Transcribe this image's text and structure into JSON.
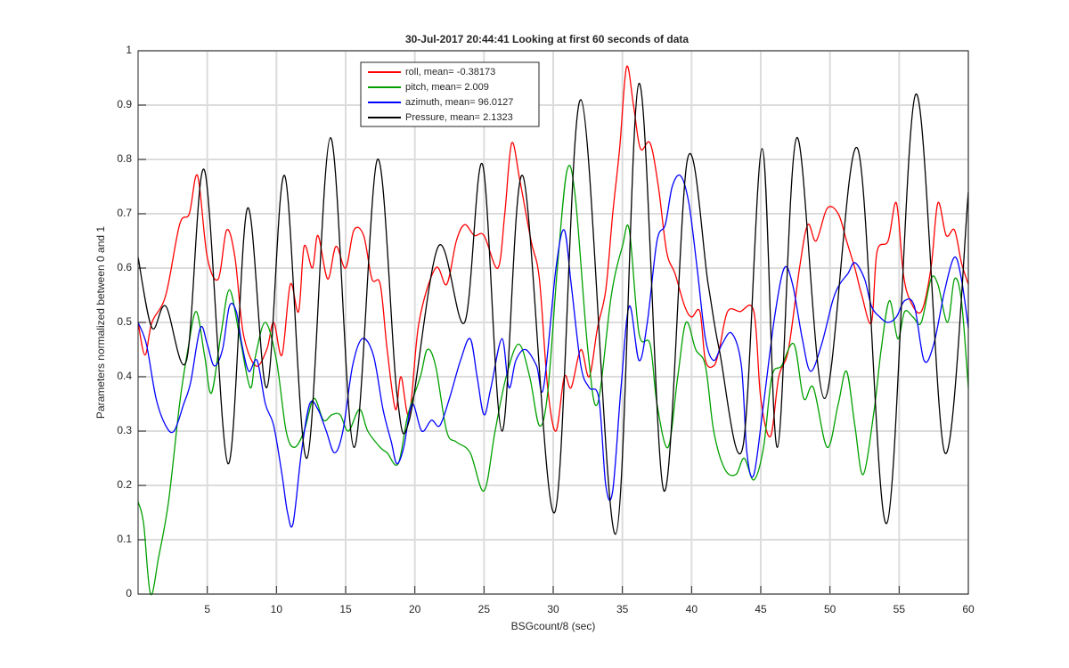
{
  "chart_data": {
    "type": "line",
    "title": "30-Jul-2017 20:44:41 Looking at first 60 seconds of data",
    "xlabel": "BSGcount/8 (sec)",
    "ylabel": "Parameters normalized between 0 and 1",
    "xlim": [
      0,
      60
    ],
    "xticks": [
      5,
      10,
      15,
      20,
      25,
      30,
      35,
      40,
      45,
      50,
      55,
      60
    ],
    "ylim": [
      0,
      1
    ],
    "yticks": [
      0,
      0.1,
      0.2,
      0.3,
      0.4,
      0.5,
      0.6,
      0.7,
      0.8,
      0.9,
      1
    ],
    "grid": true,
    "legend": "top",
    "series": [
      {
        "name": "roll, mean= -0.38173",
        "color": "#ff0000",
        "x": [
          0,
          0.5,
          1,
          2,
          3,
          3.7,
          4.3,
          5,
          5.8,
          6.4,
          7,
          7.6,
          8.5,
          9.3,
          9.8,
          10.4,
          11,
          11.6,
          12,
          12.6,
          13,
          13.7,
          14.3,
          15,
          15.6,
          16.3,
          16.9,
          17.5,
          18,
          18.6,
          19,
          19.6,
          20.3,
          21.5,
          22.3,
          23,
          23.6,
          24.3,
          25,
          26,
          26.5,
          27,
          27.6,
          28.4,
          29,
          29.6,
          30.2,
          30.8,
          31.3,
          32,
          32.6,
          33.2,
          33.8,
          34.3,
          34.8,
          35.3,
          35.8,
          36.3,
          37,
          37.6,
          38.2,
          38.8,
          39.5,
          40,
          40.6,
          41,
          41.6,
          42,
          42.6,
          43.5,
          44.5,
          45,
          45.7,
          46.3,
          47,
          47.8,
          48.4,
          49,
          49.8,
          50.6,
          51.2,
          51.8,
          52.3,
          53,
          53.4,
          54.2,
          54.8,
          55.3,
          55.8,
          56.6,
          57.3,
          57.8,
          58.4,
          59,
          59.5,
          60
        ],
        "values": [
          0.5,
          0.44,
          0.5,
          0.55,
          0.68,
          0.7,
          0.77,
          0.62,
          0.58,
          0.67,
          0.62,
          0.48,
          0.42,
          0.45,
          0.5,
          0.44,
          0.57,
          0.52,
          0.64,
          0.6,
          0.66,
          0.58,
          0.64,
          0.6,
          0.67,
          0.66,
          0.58,
          0.57,
          0.45,
          0.34,
          0.4,
          0.33,
          0.5,
          0.6,
          0.57,
          0.65,
          0.68,
          0.66,
          0.66,
          0.6,
          0.7,
          0.83,
          0.76,
          0.65,
          0.58,
          0.38,
          0.3,
          0.4,
          0.38,
          0.45,
          0.4,
          0.49,
          0.56,
          0.7,
          0.82,
          0.97,
          0.9,
          0.82,
          0.83,
          0.75,
          0.63,
          0.59,
          0.53,
          0.51,
          0.52,
          0.43,
          0.42,
          0.45,
          0.52,
          0.52,
          0.52,
          0.36,
          0.29,
          0.4,
          0.45,
          0.6,
          0.68,
          0.65,
          0.71,
          0.7,
          0.65,
          0.6,
          0.55,
          0.5,
          0.63,
          0.65,
          0.72,
          0.59,
          0.54,
          0.52,
          0.6,
          0.72,
          0.66,
          0.67,
          0.61,
          0.57
        ]
      },
      {
        "name": "pitch, mean= 2.009",
        "color": "#00a000",
        "x": [
          0,
          0.4,
          0.9,
          1.5,
          2.2,
          3,
          3.6,
          4.2,
          4.8,
          5.3,
          6,
          6.6,
          7.3,
          8.1,
          8.5,
          9.2,
          10,
          10.7,
          11.3,
          12,
          12.7,
          13.4,
          14,
          14.6,
          15.2,
          16,
          16.6,
          17.5,
          18,
          18.8,
          19.5,
          20.4,
          20.9,
          21.5,
          22.3,
          23,
          24,
          25,
          25.8,
          26.6,
          27.5,
          28.3,
          29,
          29.6,
          30.3,
          31,
          31.6,
          32.5,
          33.2,
          34.2,
          35,
          35.5,
          36.2,
          37,
          37.5,
          38.3,
          39,
          39.6,
          40.3,
          41,
          41.6,
          42.4,
          43.2,
          43.8,
          44.5,
          45.2,
          45.8,
          46.5,
          47.4,
          48.1,
          48.8,
          49.8,
          50.6,
          51.2,
          51.8,
          52.4,
          53.2,
          53.7,
          54.3,
          54.9,
          55.4,
          56,
          56.6,
          57.3,
          57.8,
          58.5,
          59,
          59.5,
          60
        ],
        "values": [
          0.17,
          0.13,
          0,
          0.07,
          0.17,
          0.35,
          0.45,
          0.52,
          0.44,
          0.37,
          0.48,
          0.56,
          0.48,
          0.38,
          0.44,
          0.5,
          0.43,
          0.3,
          0.27,
          0.3,
          0.36,
          0.32,
          0.33,
          0.33,
          0.3,
          0.34,
          0.3,
          0.27,
          0.26,
          0.24,
          0.33,
          0.4,
          0.45,
          0.42,
          0.3,
          0.28,
          0.26,
          0.19,
          0.3,
          0.4,
          0.46,
          0.4,
          0.31,
          0.37,
          0.6,
          0.78,
          0.73,
          0.45,
          0.35,
          0.55,
          0.64,
          0.67,
          0.48,
          0.46,
          0.35,
          0.27,
          0.4,
          0.5,
          0.45,
          0.42,
          0.3,
          0.23,
          0.22,
          0.25,
          0.21,
          0.27,
          0.4,
          0.42,
          0.46,
          0.36,
          0.38,
          0.27,
          0.35,
          0.41,
          0.31,
          0.22,
          0.34,
          0.45,
          0.54,
          0.47,
          0.52,
          0.51,
          0.5,
          0.58,
          0.57,
          0.5,
          0.58,
          0.54,
          0.38
        ]
      },
      {
        "name": "azimuth, mean= 96.0127",
        "color": "#0000ff",
        "x": [
          0,
          0.6,
          1.3,
          2,
          2.6,
          3.3,
          3.8,
          4.5,
          5,
          5.5,
          6.1,
          6.6,
          7.1,
          7.5,
          8,
          8.6,
          9.2,
          9.8,
          10.4,
          10.8,
          11.2,
          11.8,
          12.4,
          13,
          13.6,
          14.2,
          14.8,
          15.5,
          16.2,
          17,
          17.7,
          18.3,
          18.7,
          19.2,
          19.8,
          20.5,
          21.2,
          21.8,
          22.5,
          23.3,
          24,
          24.5,
          25,
          25.5,
          26.3,
          26.8,
          27.3,
          28,
          28.8,
          29.3,
          30.2,
          30.8,
          31.3,
          32,
          32.6,
          33.3,
          33.8,
          34.3,
          34.9,
          35.5,
          36.2,
          36.8,
          37.5,
          38.1,
          38.6,
          39.2,
          39.8,
          40.4,
          41,
          41.6,
          42.2,
          42.9,
          43.6,
          44,
          44.5,
          45.2,
          46,
          46.7,
          47.3,
          48,
          48.6,
          49.4,
          50.2,
          50.7,
          51.3,
          51.8,
          52.5,
          53,
          53.6,
          54.2,
          54.8,
          55.4,
          56.1,
          56.8,
          57.5,
          58.3,
          59,
          59.5,
          60
        ],
        "values": [
          0.5,
          0.46,
          0.36,
          0.31,
          0.3,
          0.35,
          0.39,
          0.49,
          0.46,
          0.42,
          0.45,
          0.53,
          0.52,
          0.46,
          0.41,
          0.43,
          0.35,
          0.31,
          0.22,
          0.15,
          0.13,
          0.26,
          0.35,
          0.34,
          0.3,
          0.26,
          0.3,
          0.42,
          0.47,
          0.44,
          0.34,
          0.28,
          0.24,
          0.27,
          0.35,
          0.3,
          0.32,
          0.31,
          0.36,
          0.43,
          0.47,
          0.4,
          0.33,
          0.38,
          0.47,
          0.38,
          0.43,
          0.45,
          0.42,
          0.38,
          0.6,
          0.67,
          0.57,
          0.42,
          0.38,
          0.36,
          0.2,
          0.19,
          0.38,
          0.53,
          0.43,
          0.5,
          0.65,
          0.68,
          0.75,
          0.77,
          0.72,
          0.6,
          0.47,
          0.43,
          0.46,
          0.48,
          0.42,
          0.26,
          0.22,
          0.35,
          0.51,
          0.6,
          0.57,
          0.47,
          0.41,
          0.46,
          0.54,
          0.57,
          0.59,
          0.61,
          0.58,
          0.53,
          0.51,
          0.5,
          0.51,
          0.54,
          0.53,
          0.43,
          0.46,
          0.56,
          0.62,
          0.58,
          0.49
        ]
      },
      {
        "name": "Pressure, mean= 2.1323",
        "color": "#000000",
        "x": [
          0,
          1,
          2,
          3.5,
          4.8,
          6.5,
          7.9,
          9.3,
          10.6,
          12.2,
          13.9,
          15.6,
          17.3,
          18.7,
          19.6,
          21.7,
          23.6,
          24.9,
          26.3,
          27.8,
          30.1,
          32,
          34.5,
          36.2,
          38,
          39.7,
          41.2,
          42,
          43.7,
          45.1,
          46.2,
          47.6,
          49.6,
          52,
          54.1,
          56.2,
          58.3,
          60
        ],
        "values": [
          0.62,
          0.49,
          0.53,
          0.43,
          0.78,
          0.24,
          0.71,
          0.38,
          0.77,
          0.25,
          0.84,
          0.27,
          0.8,
          0.37,
          0.32,
          0.64,
          0.5,
          0.79,
          0.3,
          0.77,
          0.15,
          0.91,
          0.11,
          0.94,
          0.19,
          0.8,
          0.57,
          0.45,
          0.27,
          0.82,
          0.27,
          0.84,
          0.36,
          0.82,
          0.13,
          0.92,
          0.26,
          0.74
        ]
      }
    ]
  }
}
